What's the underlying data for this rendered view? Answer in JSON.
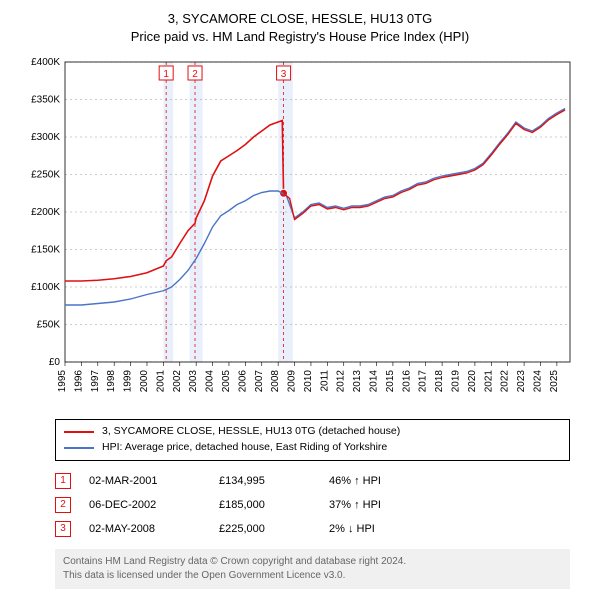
{
  "title_line1": "3, SYCAMORE CLOSE, HESSLE, HU13 0TG",
  "title_line2": "Price paid vs. HM Land Registry's House Price Index (HPI)",
  "chart": {
    "type": "line",
    "background_color": "#ffffff",
    "grid_color": "#999999",
    "grid_dash": "2,3",
    "x_start": 1995,
    "x_end": 2025.8,
    "y_start": 0,
    "y_end": 400000,
    "y_ticks": [
      0,
      50000,
      100000,
      150000,
      200000,
      250000,
      300000,
      350000,
      400000
    ],
    "y_tick_labels": [
      "£0",
      "£50K",
      "£100K",
      "£150K",
      "£200K",
      "£250K",
      "£300K",
      "£350K",
      "£400K"
    ],
    "x_ticks": [
      1995,
      1996,
      1997,
      1998,
      1999,
      2000,
      2001,
      2002,
      2003,
      2004,
      2005,
      2006,
      2007,
      2008,
      2009,
      2010,
      2011,
      2012,
      2013,
      2014,
      2015,
      2016,
      2017,
      2018,
      2019,
      2020,
      2021,
      2022,
      2023,
      2024,
      2025
    ],
    "shaded_bands": [
      {
        "from": 2001.0,
        "to": 2001.6,
        "fill": "#eaf0fb"
      },
      {
        "from": 2002.6,
        "to": 2003.4,
        "fill": "#eaf0fb"
      },
      {
        "from": 2008.0,
        "to": 2008.9,
        "fill": "#eaf0fb"
      }
    ],
    "vlines": [
      {
        "x": 2001.17,
        "color": "#e01010",
        "dash": "3,3"
      },
      {
        "x": 2002.93,
        "color": "#e01010",
        "dash": "3,3"
      },
      {
        "x": 2008.33,
        "color": "#e01010",
        "dash": "3,3"
      }
    ],
    "markers_top": [
      {
        "x": 2001.17,
        "label": "1",
        "border": "#e01010"
      },
      {
        "x": 2002.93,
        "label": "2",
        "border": "#e01010"
      },
      {
        "x": 2008.33,
        "label": "3",
        "border": "#e01010"
      }
    ],
    "series": [
      {
        "name": "red",
        "color": "#e01010",
        "width": 1.6,
        "points": [
          [
            1995,
            108000
          ],
          [
            1996,
            108000
          ],
          [
            1997,
            109000
          ],
          [
            1998,
            111000
          ],
          [
            1999,
            114000
          ],
          [
            2000,
            119000
          ],
          [
            2001,
            128000
          ],
          [
            2001.17,
            134995
          ],
          [
            2001.5,
            140000
          ],
          [
            2002,
            158000
          ],
          [
            2002.5,
            175000
          ],
          [
            2002.93,
            185000
          ],
          [
            2003,
            192000
          ],
          [
            2003.5,
            215000
          ],
          [
            2004,
            248000
          ],
          [
            2004.5,
            268000
          ],
          [
            2005,
            275000
          ],
          [
            2005.5,
            282000
          ],
          [
            2006,
            290000
          ],
          [
            2006.5,
            300000
          ],
          [
            2007,
            308000
          ],
          [
            2007.5,
            316000
          ],
          [
            2008,
            320000
          ],
          [
            2008.25,
            322000
          ],
          [
            2008.33,
            225000
          ]
        ],
        "end_marker": {
          "x": 2008.33,
          "y": 225000,
          "radius": 4
        }
      },
      {
        "name": "blue",
        "color": "#4a74c9",
        "width": 1.4,
        "points": [
          [
            1995,
            76000
          ],
          [
            1996,
            76000
          ],
          [
            1997,
            78000
          ],
          [
            1998,
            80000
          ],
          [
            1999,
            84000
          ],
          [
            2000,
            90000
          ],
          [
            2001,
            95000
          ],
          [
            2001.5,
            100000
          ],
          [
            2002,
            110000
          ],
          [
            2002.5,
            122000
          ],
          [
            2003,
            138000
          ],
          [
            2003.5,
            158000
          ],
          [
            2004,
            180000
          ],
          [
            2004.5,
            195000
          ],
          [
            2005,
            202000
          ],
          [
            2005.5,
            210000
          ],
          [
            2006,
            215000
          ],
          [
            2006.5,
            222000
          ],
          [
            2007,
            226000
          ],
          [
            2007.5,
            228000
          ],
          [
            2008,
            228000
          ],
          [
            2008.5,
            222000
          ],
          [
            2009,
            192000
          ],
          [
            2009.5,
            200000
          ],
          [
            2010,
            210000
          ],
          [
            2010.5,
            212000
          ],
          [
            2011,
            206000
          ],
          [
            2011.5,
            208000
          ],
          [
            2012,
            205000
          ],
          [
            2012.5,
            208000
          ],
          [
            2013,
            208000
          ],
          [
            2013.5,
            210000
          ],
          [
            2014,
            215000
          ],
          [
            2014.5,
            220000
          ],
          [
            2015,
            222000
          ],
          [
            2015.5,
            228000
          ],
          [
            2016,
            232000
          ],
          [
            2016.5,
            238000
          ],
          [
            2017,
            240000
          ],
          [
            2017.5,
            245000
          ],
          [
            2018,
            248000
          ],
          [
            2018.5,
            250000
          ],
          [
            2019,
            252000
          ],
          [
            2019.5,
            254000
          ],
          [
            2020,
            258000
          ],
          [
            2020.5,
            265000
          ],
          [
            2021,
            278000
          ],
          [
            2021.5,
            292000
          ],
          [
            2022,
            305000
          ],
          [
            2022.5,
            320000
          ],
          [
            2023,
            312000
          ],
          [
            2023.5,
            308000
          ],
          [
            2024,
            315000
          ],
          [
            2024.5,
            325000
          ],
          [
            2025,
            332000
          ],
          [
            2025.5,
            338000
          ]
        ]
      },
      {
        "name": "red2",
        "color": "#e01010",
        "width": 1.4,
        "points": [
          [
            2008.33,
            225000
          ],
          [
            2008.7,
            218000
          ],
          [
            2009,
            190000
          ],
          [
            2009.5,
            198000
          ],
          [
            2010,
            208000
          ],
          [
            2010.5,
            210000
          ],
          [
            2011,
            204000
          ],
          [
            2011.5,
            206000
          ],
          [
            2012,
            203000
          ],
          [
            2012.5,
            206000
          ],
          [
            2013,
            206000
          ],
          [
            2013.5,
            208000
          ],
          [
            2014,
            213000
          ],
          [
            2014.5,
            218000
          ],
          [
            2015,
            220000
          ],
          [
            2015.5,
            226000
          ],
          [
            2016,
            230000
          ],
          [
            2016.5,
            236000
          ],
          [
            2017,
            238000
          ],
          [
            2017.5,
            243000
          ],
          [
            2018,
            246000
          ],
          [
            2018.5,
            248000
          ],
          [
            2019,
            250000
          ],
          [
            2019.5,
            252000
          ],
          [
            2020,
            256000
          ],
          [
            2020.5,
            263000
          ],
          [
            2021,
            276000
          ],
          [
            2021.5,
            290000
          ],
          [
            2022,
            303000
          ],
          [
            2022.5,
            318000
          ],
          [
            2023,
            310000
          ],
          [
            2023.5,
            306000
          ],
          [
            2024,
            313000
          ],
          [
            2024.5,
            323000
          ],
          [
            2025,
            330000
          ],
          [
            2025.5,
            336000
          ]
        ]
      }
    ]
  },
  "legend": [
    {
      "color": "#e01010",
      "label": "3, SYCAMORE CLOSE, HESSLE, HU13 0TG (detached house)"
    },
    {
      "color": "#4a74c9",
      "label": "HPI: Average price, detached house, East Riding of Yorkshire"
    }
  ],
  "events": [
    {
      "n": "1",
      "border": "#e01010",
      "date": "02-MAR-2001",
      "price": "£134,995",
      "pct": "46% ↑ HPI"
    },
    {
      "n": "2",
      "border": "#e01010",
      "date": "06-DEC-2002",
      "price": "£185,000",
      "pct": "37% ↑ HPI"
    },
    {
      "n": "3",
      "border": "#e01010",
      "date": "02-MAY-2008",
      "price": "£225,000",
      "pct": "2% ↓ HPI"
    }
  ],
  "footer_line1": "Contains HM Land Registry data © Crown copyright and database right 2024.",
  "footer_line2": "This data is licensed under the Open Government Licence v3.0."
}
